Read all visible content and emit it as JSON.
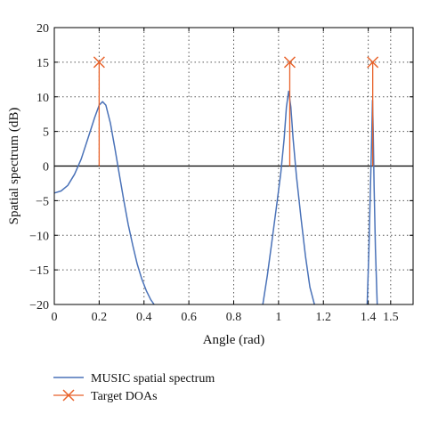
{
  "chart_data": {
    "type": "line",
    "xlabel": "Angle (rad)",
    "ylabel": "Spatial spectrum (dB)",
    "xlim": [
      0,
      1.6
    ],
    "ylim": [
      -20,
      20
    ],
    "xticks": [
      0,
      0.2,
      0.4,
      0.6,
      0.8,
      1.0,
      1.2,
      1.4,
      1.5
    ],
    "xtick_labels": [
      "0",
      "0.2",
      "0.4",
      "0.6",
      "0.8",
      "1",
      "1.2",
      "1.4",
      "1.5"
    ],
    "yticks": [
      -20,
      -15,
      -10,
      -5,
      0,
      5,
      10,
      15,
      20
    ],
    "ytick_labels": [
      "−20",
      "−15",
      "−10",
      "−5",
      "0",
      "5",
      "10",
      "15",
      "20"
    ],
    "grid": true,
    "legend_position": "below",
    "series": [
      {
        "name": "MUSIC spatial spectrum",
        "color": "#4a72b8",
        "points": [
          [
            0.0,
            -3.9
          ],
          [
            0.03,
            -3.6
          ],
          [
            0.06,
            -2.8
          ],
          [
            0.09,
            -1.2
          ],
          [
            0.12,
            1.0
          ],
          [
            0.15,
            4.0
          ],
          [
            0.18,
            7.0
          ],
          [
            0.2,
            8.8
          ],
          [
            0.215,
            9.3
          ],
          [
            0.23,
            8.8
          ],
          [
            0.25,
            6.2
          ],
          [
            0.27,
            2.6
          ],
          [
            0.29,
            -1.2
          ],
          [
            0.31,
            -5.0
          ],
          [
            0.33,
            -8.5
          ],
          [
            0.35,
            -11.5
          ],
          [
            0.37,
            -14.2
          ],
          [
            0.39,
            -16.3
          ],
          [
            0.41,
            -18.0
          ],
          [
            0.43,
            -19.3
          ],
          [
            0.445,
            -20.0
          ]
        ]
      },
      {
        "name": "",
        "color": "#4a72b8",
        "points": [
          [
            0.93,
            -20.0
          ],
          [
            0.95,
            -15.8
          ],
          [
            0.97,
            -11.0
          ],
          [
            0.99,
            -6.0
          ],
          [
            1.01,
            -1.0
          ],
          [
            1.025,
            4.0
          ],
          [
            1.035,
            8.5
          ],
          [
            1.045,
            10.8
          ],
          [
            1.055,
            8.5
          ],
          [
            1.065,
            4.0
          ],
          [
            1.08,
            -1.5
          ],
          [
            1.1,
            -7.5
          ],
          [
            1.12,
            -13.0
          ],
          [
            1.14,
            -17.5
          ],
          [
            1.16,
            -20.0
          ]
        ]
      },
      {
        "name": "",
        "color": "#4a72b8",
        "points": [
          [
            1.395,
            -20.0
          ],
          [
            1.403,
            -12.0
          ],
          [
            1.41,
            -3.0
          ],
          [
            1.415,
            3.5
          ],
          [
            1.419,
            9.5
          ],
          [
            1.422,
            5.0
          ],
          [
            1.426,
            -3.0
          ],
          [
            1.432,
            -12.0
          ],
          [
            1.44,
            -20.0
          ]
        ]
      }
    ],
    "target_doas": {
      "name": "Target DOAs",
      "color": "#e8622a",
      "points": [
        [
          0.2,
          15
        ],
        [
          1.05,
          15
        ],
        [
          1.42,
          15
        ]
      ]
    },
    "legend": [
      {
        "label": "MUSIC spatial spectrum",
        "style": "line",
        "color": "#4a72b8"
      },
      {
        "label": "Target DOAs",
        "style": "x-marker",
        "color": "#e8622a"
      }
    ]
  }
}
